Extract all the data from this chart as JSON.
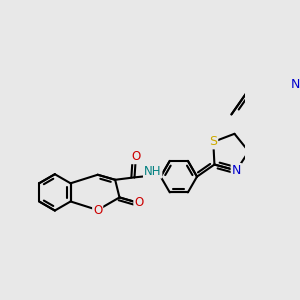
{
  "background_color": "#e8e8e8",
  "atom_colors": {
    "C": "#000000",
    "N": "#0000cc",
    "O": "#cc0000",
    "S": "#ccaa00",
    "H": "#008080"
  },
  "bond_color": "#000000",
  "bond_width": 1.5,
  "figsize": [
    3.0,
    3.0
  ],
  "dpi": 100
}
